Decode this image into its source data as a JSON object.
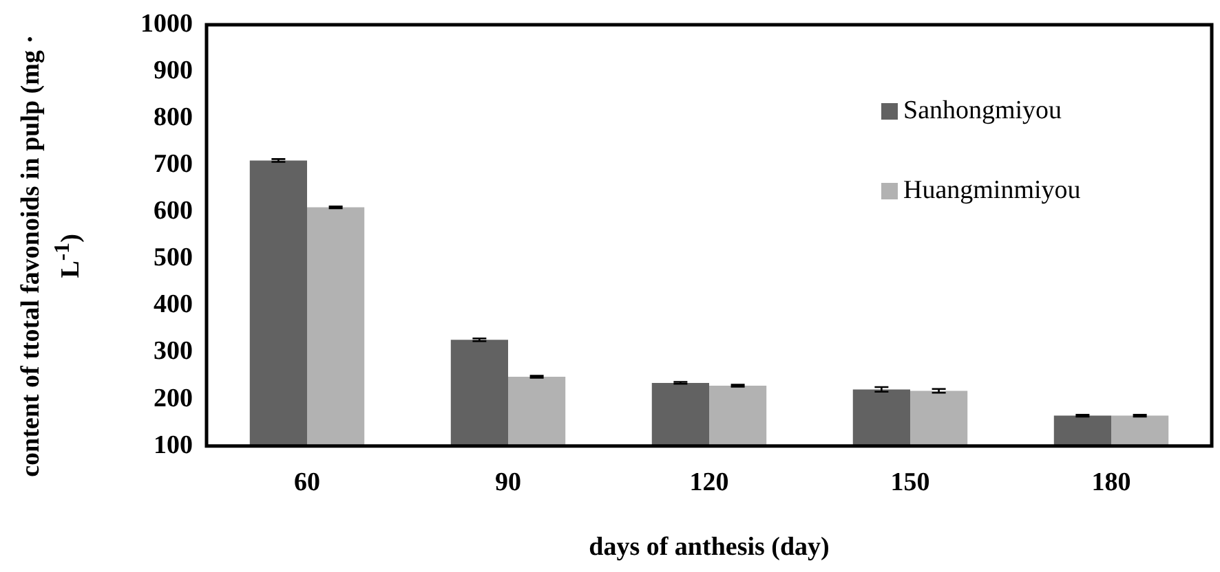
{
  "chart_data": {
    "type": "bar",
    "xlabel": "days of anthesis (day)",
    "ylabel": "content of ttotal favonoids in pulp (mg · L$^{-1}$)",
    "categories": [
      "60",
      "90",
      "120",
      "150",
      "180"
    ],
    "series": [
      {
        "name": "Sanhongmiyou",
        "color": "#626262",
        "values": [
          710,
          327,
          235,
          221,
          165
        ],
        "errors": [
          3,
          3,
          2,
          5,
          2
        ]
      },
      {
        "name": "Huangminmiyou",
        "color": "#b2b2b2",
        "values": [
          610,
          248,
          229,
          218,
          165
        ],
        "errors": [
          2,
          2,
          2,
          4,
          2
        ]
      }
    ],
    "ylim": [
      100,
      1000
    ],
    "yticks": [
      100,
      200,
      300,
      400,
      500,
      600,
      700,
      800,
      900,
      1000
    ],
    "grid": false,
    "legend": "top right"
  }
}
